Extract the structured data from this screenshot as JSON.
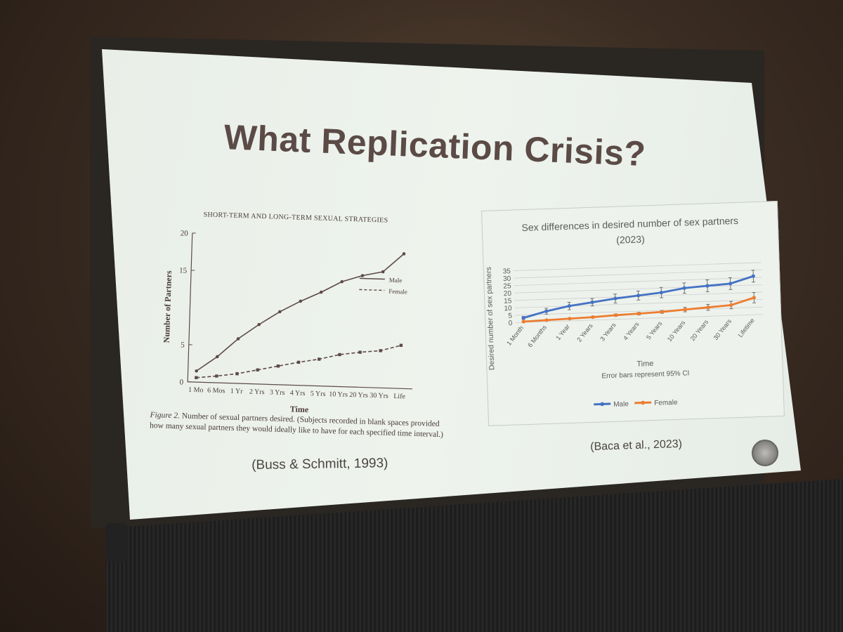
{
  "slide": {
    "title": "What Replication Crisis?",
    "left_credit": "(Buss & Schmitt, 1993)",
    "right_credit": "(Baca et al., 2023)"
  },
  "chart_data": [
    {
      "type": "line",
      "title": "SHORT-TERM AND LONG-TERM SEXUAL STRATEGIES",
      "xlabel": "Time",
      "ylabel": "Number of Partners",
      "categories": [
        "1 Mo",
        "6 Mos",
        "1 Yr",
        "2 Yrs",
        "3 Yrs",
        "4 Yrs",
        "5 Yrs",
        "10 Yrs",
        "20 Yrs",
        "30 Yrs",
        "Life"
      ],
      "ylim": [
        0,
        20
      ],
      "yticks": [
        0,
        5,
        15,
        20
      ],
      "series": [
        {
          "name": "Male",
          "values": [
            1.5,
            3.5,
            6,
            8,
            9.8,
            11.3,
            12.6,
            14.1,
            15,
            15.6,
            18.1
          ],
          "style": "solid",
          "color": "#5e4a48"
        },
        {
          "name": "Female",
          "values": [
            0.6,
            0.9,
            1.3,
            1.9,
            2.5,
            3.1,
            3.6,
            4.3,
            4.7,
            5.0,
            5.8
          ],
          "style": "dashed",
          "color": "#5e4a48"
        }
      ],
      "legend": "right",
      "caption_label": "Figure 2.",
      "caption_text": "Number of sexual partners desired. (Subjects recorded in blank spaces provided how many sexual partners they would ideally like to have for each specified time interval.)"
    },
    {
      "type": "line",
      "title": "Sex differences in desired number of sex partners (2023)",
      "title_line1": "Sex differences in desired number of sex partners",
      "title_line2": "(2023)",
      "xlabel": "Time",
      "subtitle": "Error bars represent 95% CI",
      "ylabel": "Desired number of sex partners",
      "categories": [
        "1 Month",
        "6 Months",
        "1 Year",
        "2 Years",
        "3 Years",
        "4 Years",
        "5 Years",
        "10 Years",
        "20 Years",
        "30 Years",
        "Lifetime"
      ],
      "ylim": [
        0,
        35
      ],
      "yticks": [
        0,
        5,
        10,
        15,
        20,
        25,
        30,
        35
      ],
      "grid": true,
      "series": [
        {
          "name": "Male",
          "values": [
            3,
            7,
            10,
            12,
            14,
            15.5,
            17,
            19.5,
            20.5,
            21.5,
            26
          ],
          "error": [
            1,
            2,
            2.5,
            2.5,
            3,
            3,
            3.5,
            3.5,
            4,
            4,
            4
          ],
          "color": "#4472c4"
        },
        {
          "name": "Female",
          "values": [
            0.5,
            1,
            1.5,
            2,
            2.8,
            3.3,
            4,
            5,
            6,
            7,
            11.5
          ],
          "error": [
            0.3,
            0.4,
            0.5,
            0.6,
            0.8,
            0.9,
            1,
            1.5,
            2,
            2.5,
            3.5
          ],
          "color": "#ed7d31"
        }
      ],
      "legend": "bottom"
    }
  ]
}
